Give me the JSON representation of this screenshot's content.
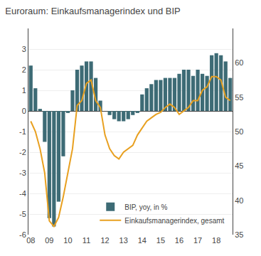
{
  "chart_data": {
    "type": "bar",
    "title": "Euroraum: Einkaufsmanagerindex und BIP",
    "categories": [
      "08",
      null,
      null,
      null,
      "09",
      null,
      null,
      null,
      "10",
      null,
      null,
      null,
      "11",
      null,
      null,
      null,
      "12",
      null,
      null,
      null,
      "13",
      null,
      null,
      null,
      "14",
      null,
      null,
      null,
      "15",
      null,
      null,
      null,
      "16",
      null,
      null,
      null,
      "17",
      null,
      null,
      null,
      "18",
      null,
      null,
      null
    ],
    "series": [
      {
        "name": "BIP, yoy, in %",
        "type": "bar",
        "color": "#3d6b75",
        "values": [
          2.2,
          1.1,
          0.1,
          -1.5,
          -5.2,
          -5.6,
          -4.4,
          -2.2,
          -0.1,
          1.0,
          2.0,
          2.2,
          2.4,
          2.4,
          1.6,
          0.5,
          0.0,
          -0.2,
          -0.4,
          -0.5,
          -0.5,
          -0.4,
          -0.2,
          -0.1,
          0.8,
          1.1,
          1.3,
          1.5,
          1.5,
          1.6,
          1.6,
          1.6,
          1.8,
          2.0,
          2.0,
          1.7,
          2.0,
          1.8,
          1.7,
          2.7,
          2.8,
          2.7,
          2.4,
          1.6
        ]
      },
      {
        "name": "Einkaufsmanagerindex, gesamt",
        "type": "line",
        "color": "#e8a020",
        "axis": "y2",
        "values": [
          51.5,
          50.0,
          47.5,
          44.0,
          37.0,
          36.2,
          37.5,
          40.5,
          44.0,
          47.5,
          53.8,
          54.5,
          57.0,
          57.5,
          54.5,
          53.5,
          49.5,
          47.5,
          46.5,
          46.0,
          47.0,
          47.5,
          48.0,
          49.5,
          50.5,
          51.5,
          52.0,
          52.5,
          52.8,
          53.5,
          54.0,
          53.5,
          52.5,
          53.0,
          53.5,
          54.5,
          54.5,
          56.0,
          56.5,
          58.0,
          58.0,
          57.5,
          55.0,
          54.5
        ]
      }
    ],
    "ylim": [
      -6,
      4
    ],
    "yticks": [
      -6,
      -5,
      -4,
      -3,
      -2,
      -1,
      0,
      1,
      2,
      3
    ],
    "y2lim": [
      35,
      65
    ],
    "y2ticks": [
      35,
      40,
      45,
      50,
      55,
      60
    ],
    "grid": true,
    "legend": "lower right"
  }
}
